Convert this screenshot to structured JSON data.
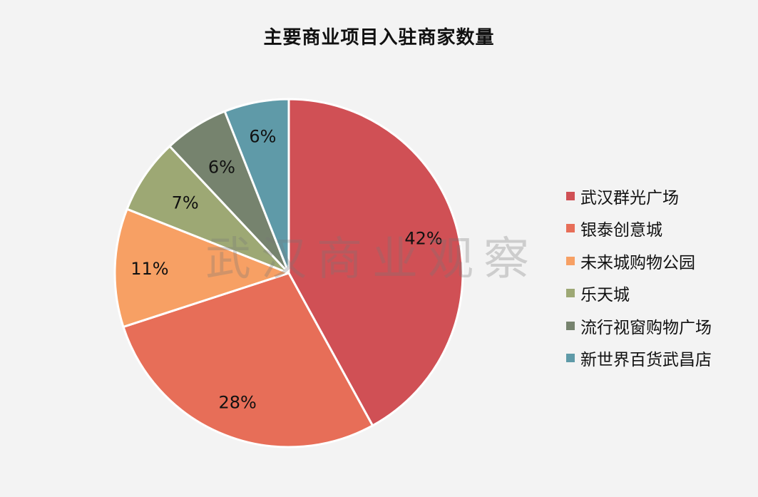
{
  "chart_data": {
    "type": "pie",
    "title": "主要商业项目入驻商家数量",
    "categories": [
      "武汉群光广场",
      "银泰创意城",
      "未来城购物公园",
      "乐天城",
      "流行视窗购物广场",
      "新世界百货武昌店"
    ],
    "values": [
      42,
      28,
      11,
      7,
      6,
      6
    ],
    "labels": [
      "42%",
      "28%",
      "11%",
      "7%",
      "6%",
      "6%"
    ],
    "colors": [
      "#d05055",
      "#e76e58",
      "#f7a064",
      "#9da874",
      "#76836e",
      "#5f9aa8"
    ],
    "legend": "right",
    "start_angle": "12 o'clock",
    "direction": "clockwise"
  },
  "watermark": "武汉商业观察"
}
